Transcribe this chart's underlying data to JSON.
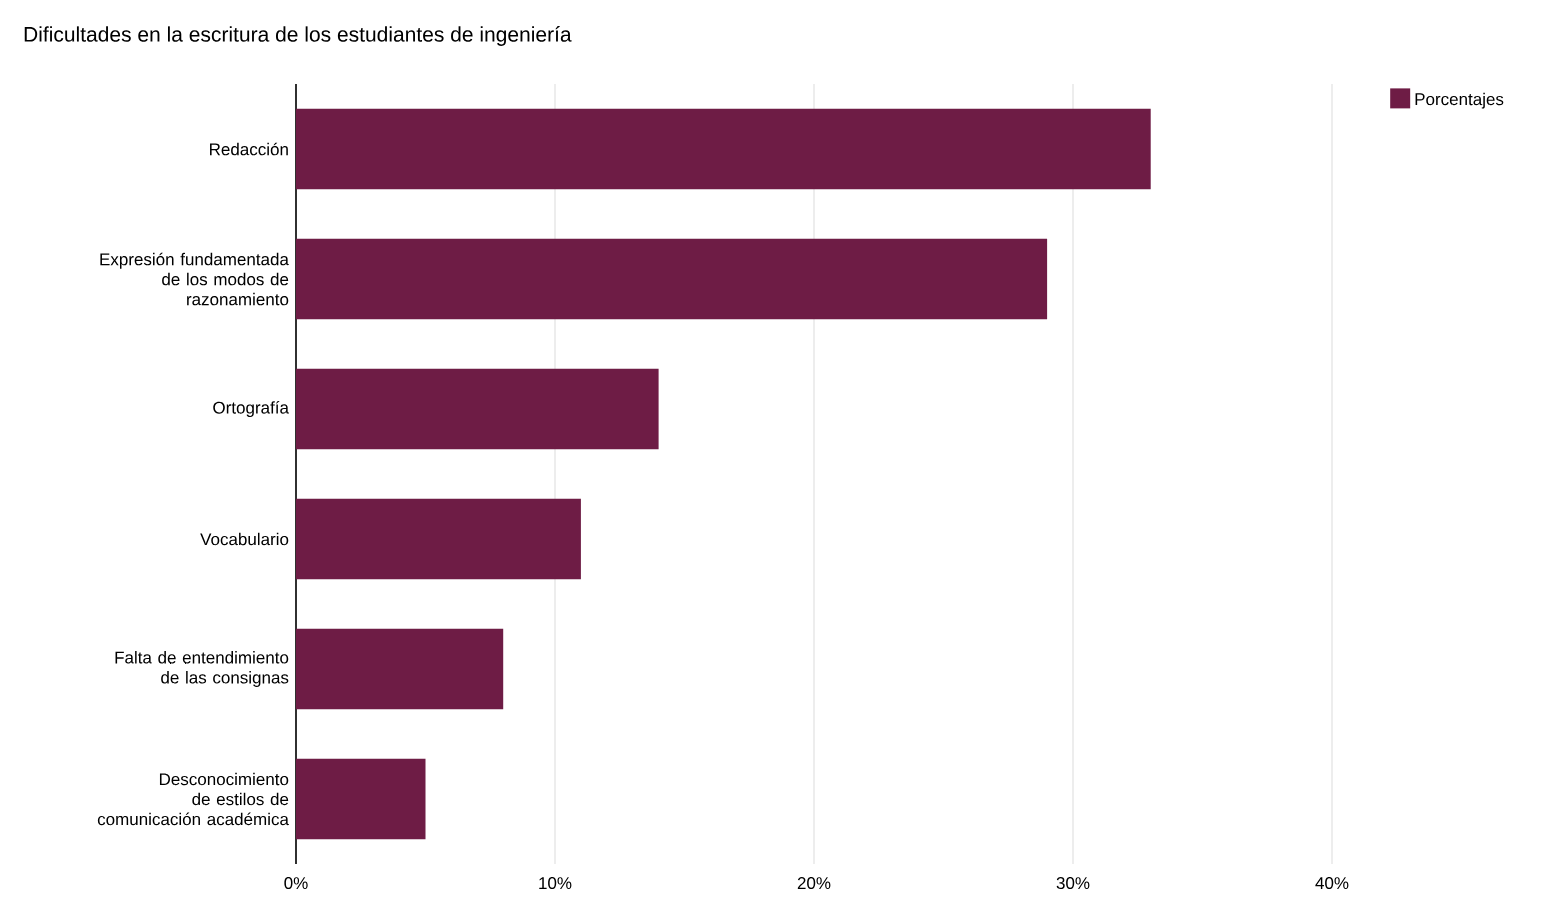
{
  "chart_data": {
    "type": "bar",
    "orientation": "horizontal",
    "title": "Dificultades en la escritura de los estudiantes de ingeniería",
    "categories": [
      "Redacción",
      "Expresión fundamentada de los modos de razonamiento",
      "Ortografía",
      "Vocabulario",
      "Falta de entendimiento de las consignas",
      "Desconocimiento de estilos de comunicación académica"
    ],
    "series": [
      {
        "name": "Porcentajes",
        "color": "#6e1c45",
        "values": [
          33,
          29,
          14,
          11,
          8,
          5
        ]
      }
    ],
    "xlim": [
      0,
      40
    ],
    "xticks": [
      {
        "value": 0,
        "label": "0%"
      },
      {
        "value": 10,
        "label": "10%"
      },
      {
        "value": 20,
        "label": "20%"
      },
      {
        "value": 30,
        "label": "30%"
      },
      {
        "value": 40,
        "label": "40%"
      }
    ],
    "grid": "x",
    "legend": "top right"
  }
}
